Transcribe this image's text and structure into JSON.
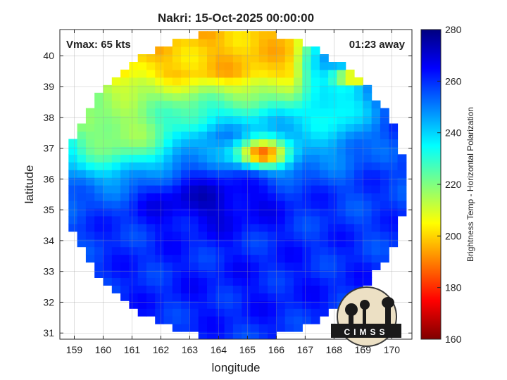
{
  "chart_data": {
    "type": "heatmap",
    "title": "Nakri: 15-Oct-2025 00:00:00",
    "xlabel": "longitude",
    "ylabel": "latitude",
    "xlim": [
      158.5,
      170.7
    ],
    "ylim": [
      30.8,
      40.85
    ],
    "xticks": [
      159,
      160,
      161,
      162,
      163,
      164,
      165,
      166,
      167,
      168,
      169,
      170
    ],
    "yticks": [
      31,
      32,
      33,
      34,
      35,
      36,
      37,
      38,
      39,
      40
    ],
    "grid": true,
    "annotations": {
      "vmax": "Vmax: 65 kts",
      "time_away": "01:23 away"
    },
    "colorbar": {
      "label": "Brightness Temp - Horizontal Polarization",
      "range": [
        160,
        280
      ],
      "ticks": [
        160,
        180,
        200,
        220,
        240,
        260,
        280
      ],
      "colormap": "jet"
    },
    "logo_text": "CIMSS",
    "swath": {
      "center_lon": 164.6,
      "center_lat": 35.8,
      "radius_lon": 5.9,
      "radius_lat": 5.0
    },
    "features": [
      {
        "name": "cold-north-band",
        "lon": 164.2,
        "lat": 39.8,
        "rlon": 6.5,
        "rlat": 1.6,
        "tb": 198
      },
      {
        "name": "northwest-moderate",
        "lon": 160.5,
        "lat": 37.6,
        "rlon": 2.6,
        "rlat": 1.6,
        "tb": 215
      },
      {
        "name": "central-convection",
        "lon": 165.6,
        "lat": 36.9,
        "rlon": 1.4,
        "rlat": 0.7,
        "tb": 222
      },
      {
        "name": "convective-core",
        "lon": 165.5,
        "lat": 36.8,
        "rlon": 0.7,
        "rlat": 0.35,
        "tb": 185
      },
      {
        "name": "warm-ocean-south",
        "lon": 164.8,
        "lat": 32.5,
        "rlon": 5.5,
        "rlat": 2.0,
        "tb": 262
      },
      {
        "name": "dark-center",
        "lon": 163.6,
        "lat": 35.2,
        "rlon": 2.4,
        "rlat": 1.0,
        "tb": 272
      },
      {
        "name": "east-cyan-band",
        "lon": 168.0,
        "lat": 38.4,
        "rlon": 1.3,
        "rlat": 1.5,
        "tb": 232
      },
      {
        "name": "northeast-warm-spot",
        "lon": 168.8,
        "lat": 39.3,
        "rlon": 0.7,
        "rlat": 0.2,
        "tb": 192
      }
    ]
  }
}
